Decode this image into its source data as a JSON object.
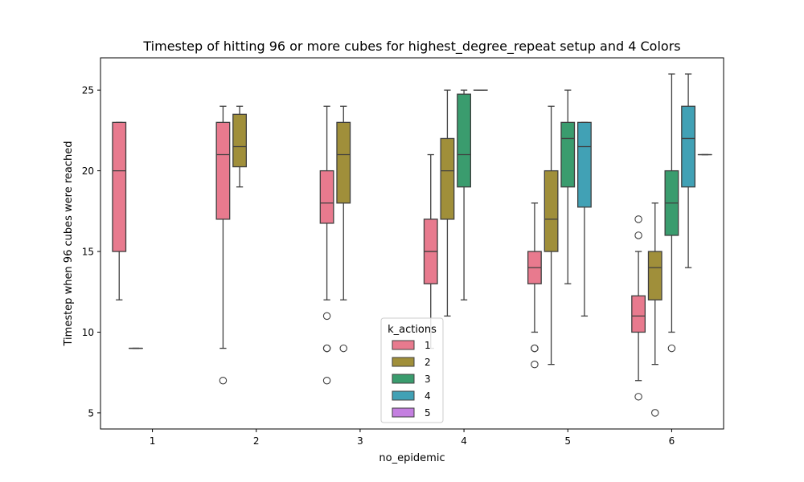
{
  "chart_data": {
    "type": "box",
    "title": "Timestep of hitting 96 or more cubes for highest_degree_repeat setup and 4 Colors",
    "xlabel": "no_epidemic",
    "ylabel": "Timestep when 96 cubes were reached",
    "categories": [
      "1",
      "2",
      "3",
      "4",
      "5",
      "6"
    ],
    "ylim": [
      4,
      27
    ],
    "yticks": [
      5,
      10,
      15,
      20,
      25
    ],
    "grid": false,
    "legend": {
      "title": "k_actions",
      "placement": "lower-center"
    },
    "series": [
      {
        "name": "1",
        "color": "#e87a8e",
        "boxes": [
          {
            "category": "1",
            "whislo": 12,
            "q1": 15,
            "med": 20,
            "q3": 23,
            "whishi": 23,
            "fliers": []
          },
          {
            "category": "2",
            "whislo": 9,
            "q1": 17,
            "med": 21,
            "q3": 23,
            "whishi": 24,
            "fliers": [
              7
            ]
          },
          {
            "category": "3",
            "whislo": 12,
            "q1": 16.75,
            "med": 18,
            "q3": 20,
            "whishi": 24,
            "fliers": [
              11,
              9,
              9,
              7
            ]
          },
          {
            "category": "4",
            "whislo": 9,
            "q1": 13,
            "med": 15,
            "q3": 17,
            "whishi": 21,
            "fliers": []
          },
          {
            "category": "5",
            "whislo": 10,
            "q1": 13,
            "med": 14,
            "q3": 15,
            "whishi": 18,
            "fliers": [
              9,
              9,
              8
            ]
          },
          {
            "category": "6",
            "whislo": 7,
            "q1": 10,
            "med": 11,
            "q3": 12.25,
            "whishi": 15,
            "fliers": [
              17,
              16,
              6
            ]
          }
        ]
      },
      {
        "name": "2",
        "color": "#a08f3a",
        "boxes": [
          {
            "category": "1",
            "whislo": 9,
            "q1": 9,
            "med": 9,
            "q3": 9,
            "whishi": 9,
            "fliers": []
          },
          {
            "category": "2",
            "whislo": 19,
            "q1": 20.25,
            "med": 21.5,
            "q3": 23.5,
            "whishi": 24,
            "fliers": []
          },
          {
            "category": "3",
            "whislo": 12,
            "q1": 18,
            "med": 21,
            "q3": 23,
            "whishi": 24,
            "fliers": [
              9
            ]
          },
          {
            "category": "4",
            "whislo": 11,
            "q1": 17,
            "med": 20,
            "q3": 22,
            "whishi": 25,
            "fliers": []
          },
          {
            "category": "5",
            "whislo": 8,
            "q1": 15,
            "med": 17,
            "q3": 20,
            "whishi": 24,
            "fliers": []
          },
          {
            "category": "6",
            "whislo": 8,
            "q1": 12,
            "med": 14,
            "q3": 15,
            "whishi": 18,
            "fliers": [
              5
            ]
          }
        ]
      },
      {
        "name": "3",
        "color": "#3a9c6e",
        "boxes": [
          {
            "category": "4",
            "whislo": 12,
            "q1": 19,
            "med": 21,
            "q3": 24.75,
            "whishi": 25,
            "fliers": []
          },
          {
            "category": "5",
            "whislo": 13,
            "q1": 19,
            "med": 22,
            "q3": 23,
            "whishi": 25,
            "fliers": []
          },
          {
            "category": "6",
            "whislo": 10,
            "q1": 16,
            "med": 18,
            "q3": 20,
            "whishi": 26,
            "fliers": [
              9
            ]
          }
        ]
      },
      {
        "name": "4",
        "color": "#41a1b5",
        "boxes": [
          {
            "category": "4",
            "whislo": 25,
            "q1": 25,
            "med": 25,
            "q3": 25,
            "whishi": 25,
            "fliers": []
          },
          {
            "category": "5",
            "whislo": 11,
            "q1": 17.75,
            "med": 21.5,
            "q3": 23,
            "whishi": 23,
            "fliers": []
          },
          {
            "category": "6",
            "whislo": 14,
            "q1": 19,
            "med": 22,
            "q3": 24,
            "whishi": 26,
            "fliers": []
          }
        ]
      },
      {
        "name": "5",
        "color": "#c47fe0",
        "boxes": [
          {
            "category": "6",
            "whislo": 21,
            "q1": 21,
            "med": 21,
            "q3": 21,
            "whishi": 21,
            "fliers": []
          }
        ]
      }
    ]
  }
}
